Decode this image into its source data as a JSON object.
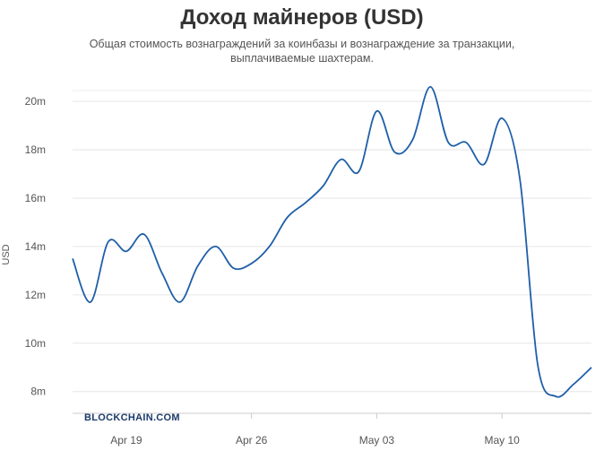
{
  "chart_data": {
    "type": "line",
    "title": "Доход майнеров (USD)",
    "subtitle": "Общая стоимость вознаграждений за коинбазы и вознаграждение за транзакции, выплачиваемые шахтерам.",
    "xlabel": "",
    "ylabel": "USD",
    "watermark": "BLOCKCHAIN.COM",
    "x_ticks": [
      "Apr 19",
      "Apr 26",
      "May 03",
      "May 10"
    ],
    "y_ticks": [
      "8m",
      "10m",
      "12m",
      "14m",
      "16m",
      "18m",
      "20m"
    ],
    "y_tick_values": [
      8,
      10,
      12,
      14,
      16,
      18,
      20
    ],
    "ylim": [
      7.1,
      21.3
    ],
    "xlim": [
      "2020-04-16",
      "2020-05-15"
    ],
    "grid": true,
    "line_color": "#1f5fa8",
    "series": [
      {
        "x": [
          "2020-04-16",
          "2020-04-17",
          "2020-04-18",
          "2020-04-19",
          "2020-04-20",
          "2020-04-21",
          "2020-04-22",
          "2020-04-23",
          "2020-04-24",
          "2020-04-25",
          "2020-04-26",
          "2020-04-27",
          "2020-04-28",
          "2020-04-29",
          "2020-04-30",
          "2020-05-01",
          "2020-05-02",
          "2020-05-03",
          "2020-05-04",
          "2020-05-05",
          "2020-05-06",
          "2020-05-07",
          "2020-05-08",
          "2020-05-09",
          "2020-05-10",
          "2020-05-11",
          "2020-05-12",
          "2020-05-13",
          "2020-05-14",
          "2020-05-15"
        ],
        "values": [
          13.5,
          11.7,
          14.2,
          13.8,
          14.5,
          12.9,
          11.7,
          13.2,
          14.0,
          13.1,
          13.3,
          14.0,
          15.2,
          15.8,
          16.5,
          17.6,
          17.1,
          19.6,
          17.9,
          18.4,
          20.6,
          18.3,
          18.3,
          17.4,
          19.3,
          16.8,
          9.1,
          7.8,
          8.3,
          9.0
        ]
      }
    ]
  }
}
